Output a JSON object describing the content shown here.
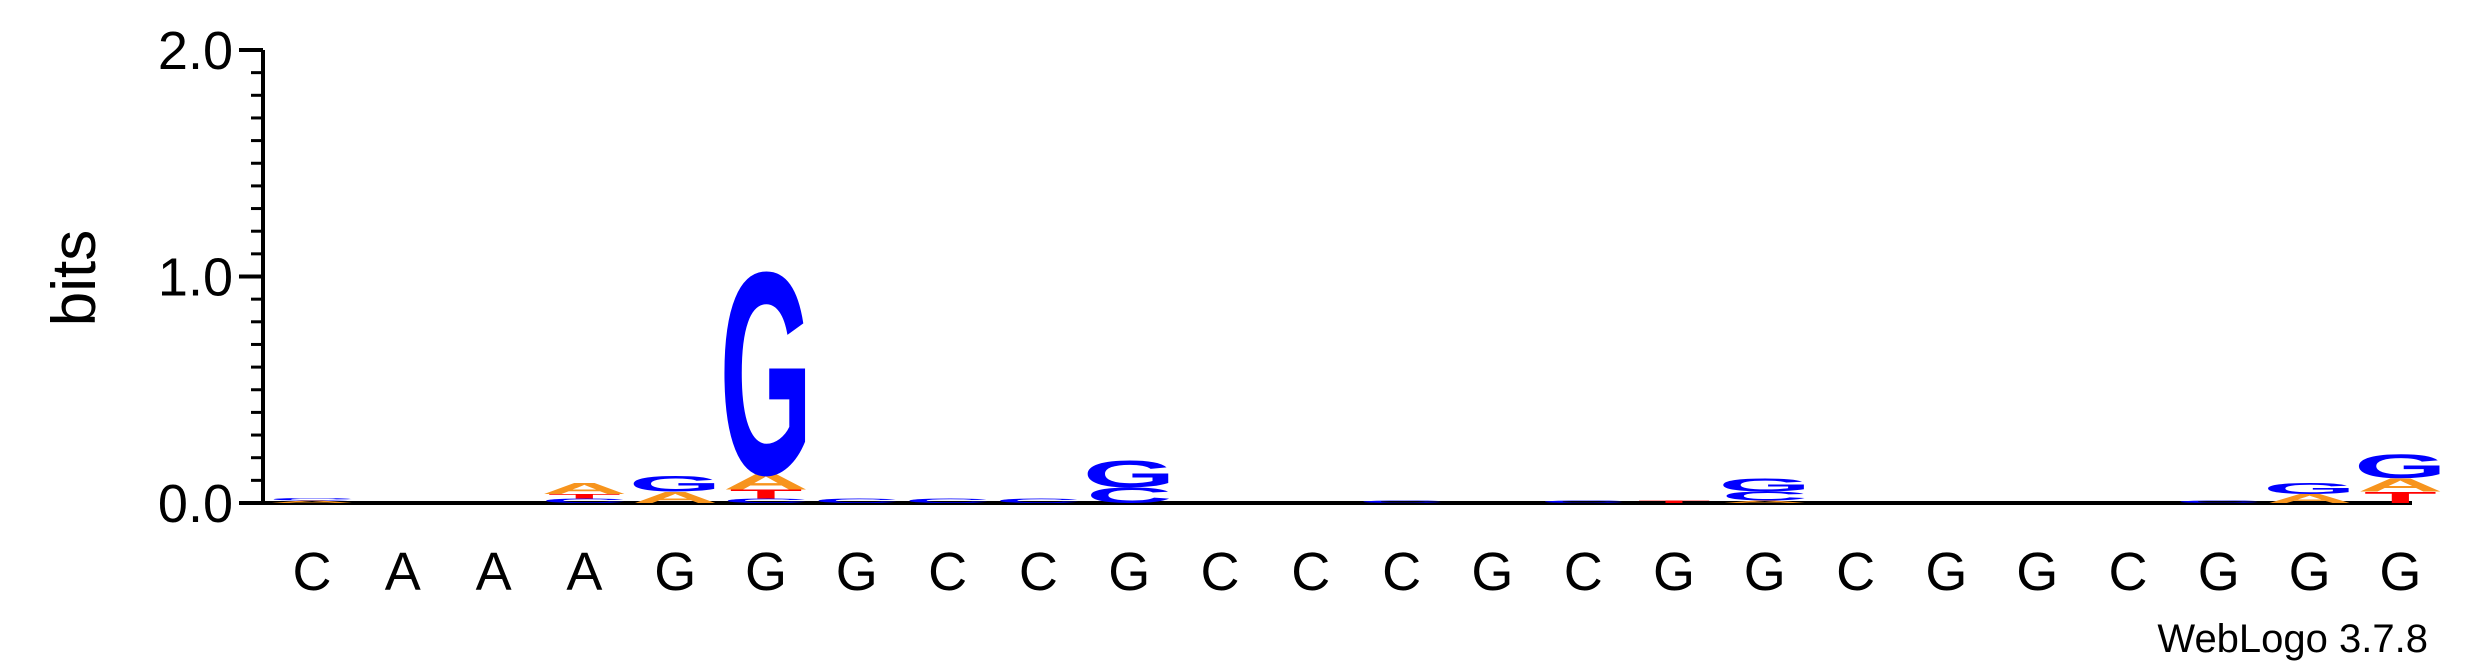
{
  "colors": {
    "A": "#f7941d",
    "C": "#0000ff",
    "G": "#0000ff",
    "T": "#ff0000"
  },
  "chart_data": {
    "type": "sequence-logo",
    "ylabel": "bits",
    "ylim": [
      0,
      2.0
    ],
    "yticks": [
      "0.0",
      "1.0",
      "2.0"
    ],
    "credit": "WebLogo 3.7.8",
    "positions": [
      {
        "label": "C",
        "stack": [
          {
            "letter": "A",
            "bits": 0.01
          },
          {
            "letter": "C",
            "bits": 0.01
          }
        ]
      },
      {
        "label": "A",
        "stack": []
      },
      {
        "label": "A",
        "stack": []
      },
      {
        "label": "A",
        "stack": [
          {
            "letter": "C",
            "bits": 0.02
          },
          {
            "letter": "T",
            "bits": 0.02
          },
          {
            "letter": "A",
            "bits": 0.05
          }
        ]
      },
      {
        "label": "G",
        "stack": [
          {
            "letter": "A",
            "bits": 0.05
          },
          {
            "letter": "G",
            "bits": 0.07
          }
        ]
      },
      {
        "label": "G",
        "stack": [
          {
            "letter": "C",
            "bits": 0.02
          },
          {
            "letter": "T",
            "bits": 0.04
          },
          {
            "letter": "A",
            "bits": 0.07
          },
          {
            "letter": "G",
            "bits": 0.92
          }
        ]
      },
      {
        "label": "G",
        "stack": [
          {
            "letter": "C",
            "bits": 0.02
          }
        ]
      },
      {
        "label": "C",
        "stack": [
          {
            "letter": "C",
            "bits": 0.02
          }
        ]
      },
      {
        "label": "C",
        "stack": [
          {
            "letter": "C",
            "bits": 0.02
          }
        ]
      },
      {
        "label": "G",
        "stack": [
          {
            "letter": "C",
            "bits": 0.07
          },
          {
            "letter": "G",
            "bits": 0.12
          }
        ]
      },
      {
        "label": "C",
        "stack": []
      },
      {
        "label": "C",
        "stack": []
      },
      {
        "label": "C",
        "stack": [
          {
            "letter": "C",
            "bits": 0.01
          }
        ]
      },
      {
        "label": "G",
        "stack": []
      },
      {
        "label": "C",
        "stack": [
          {
            "letter": "C",
            "bits": 0.01
          }
        ]
      },
      {
        "label": "G",
        "stack": [
          {
            "letter": "T",
            "bits": 0.01
          }
        ]
      },
      {
        "label": "G",
        "stack": [
          {
            "letter": "A",
            "bits": 0.01
          },
          {
            "letter": "C",
            "bits": 0.04
          },
          {
            "letter": "G",
            "bits": 0.06
          }
        ]
      },
      {
        "label": "C",
        "stack": []
      },
      {
        "label": "G",
        "stack": []
      },
      {
        "label": "G",
        "stack": []
      },
      {
        "label": "C",
        "stack": []
      },
      {
        "label": "G",
        "stack": [
          {
            "letter": "C",
            "bits": 0.01
          }
        ]
      },
      {
        "label": "G",
        "stack": [
          {
            "letter": "A",
            "bits": 0.04
          },
          {
            "letter": "G",
            "bits": 0.05
          }
        ]
      },
      {
        "label": "G",
        "stack": [
          {
            "letter": "T",
            "bits": 0.05
          },
          {
            "letter": "A",
            "bits": 0.06
          },
          {
            "letter": "G",
            "bits": 0.11
          }
        ]
      }
    ]
  }
}
